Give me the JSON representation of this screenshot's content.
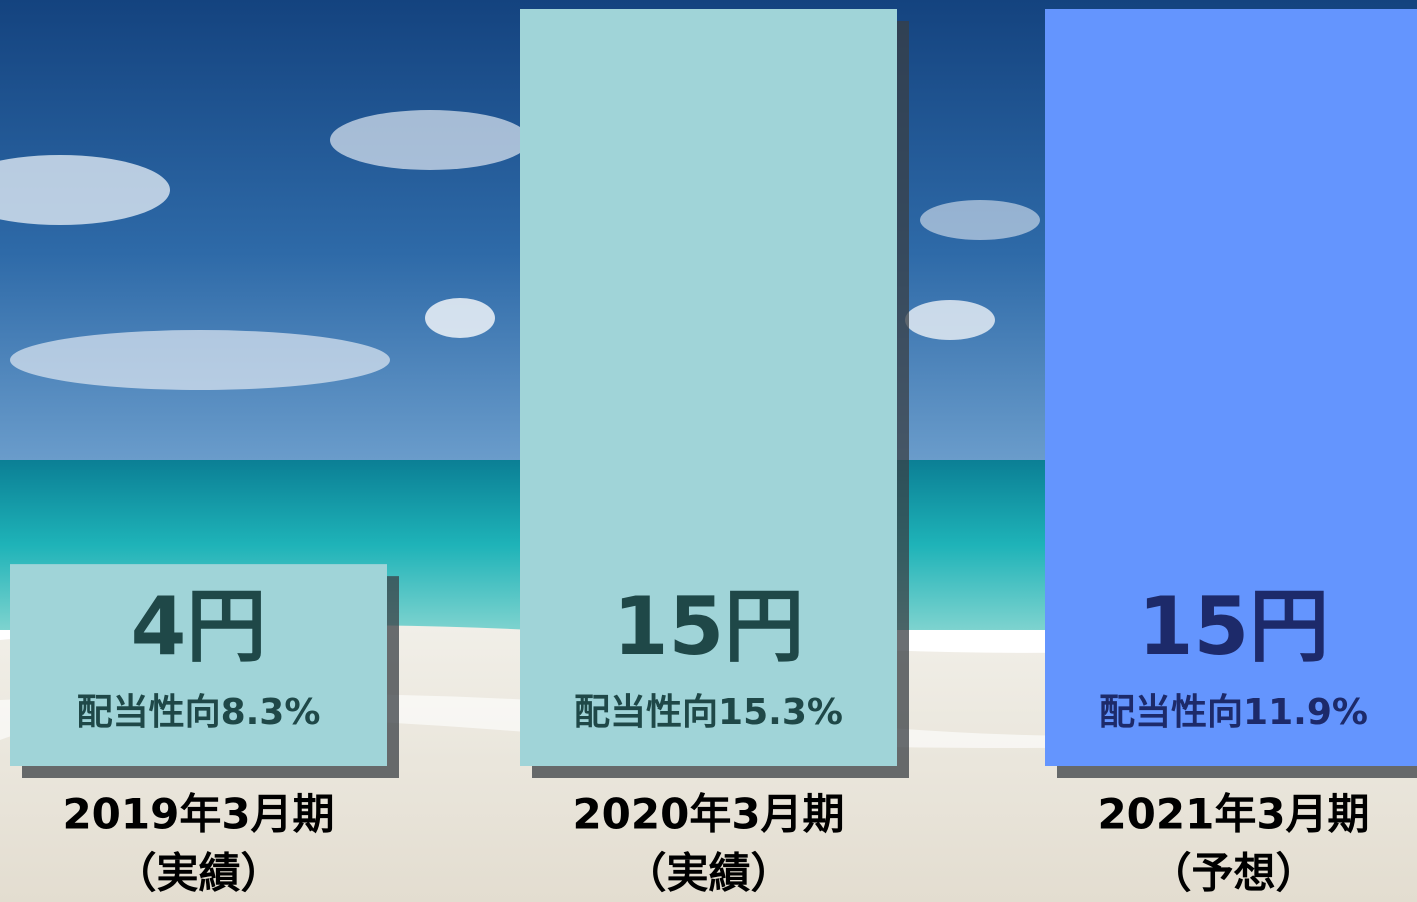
{
  "chart_data": {
    "type": "bar",
    "categories": [
      "2019年3月期",
      "2020年3月期",
      "2021年3月期"
    ],
    "subcategories": [
      "（実績）",
      "（実績）",
      "（予想）"
    ],
    "values": [
      4,
      15,
      15
    ],
    "value_labels": [
      "4円",
      "15円",
      "15円"
    ],
    "annotations": [
      "配当性向8.3%",
      "配当性向15.3%",
      "配当性向11.9%"
    ],
    "colors": [
      "#a0d4d8",
      "#a0d4d8",
      "#6495fe"
    ],
    "label_colors": [
      "#1f4848",
      "#1f4848",
      "#1d2a6a"
    ],
    "ylim": [
      0,
      15
    ]
  }
}
